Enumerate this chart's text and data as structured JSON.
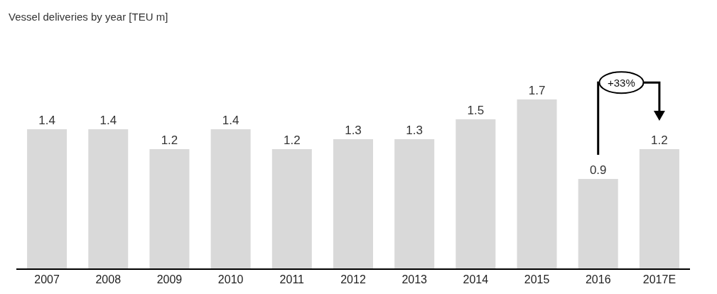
{
  "chart_data": {
    "type": "bar",
    "title": "Vessel deliveries by year [TEU m]",
    "categories": [
      "2007",
      "2008",
      "2009",
      "2010",
      "2011",
      "2012",
      "2013",
      "2014",
      "2015",
      "2016",
      "2017E"
    ],
    "values": [
      1.4,
      1.4,
      1.2,
      1.4,
      1.2,
      1.3,
      1.3,
      1.5,
      1.7,
      0.9,
      1.2
    ],
    "color": "#d9d9d9",
    "data_labels": true,
    "grid": false,
    "legend": false,
    "annotations": [
      "+33%"
    ]
  }
}
